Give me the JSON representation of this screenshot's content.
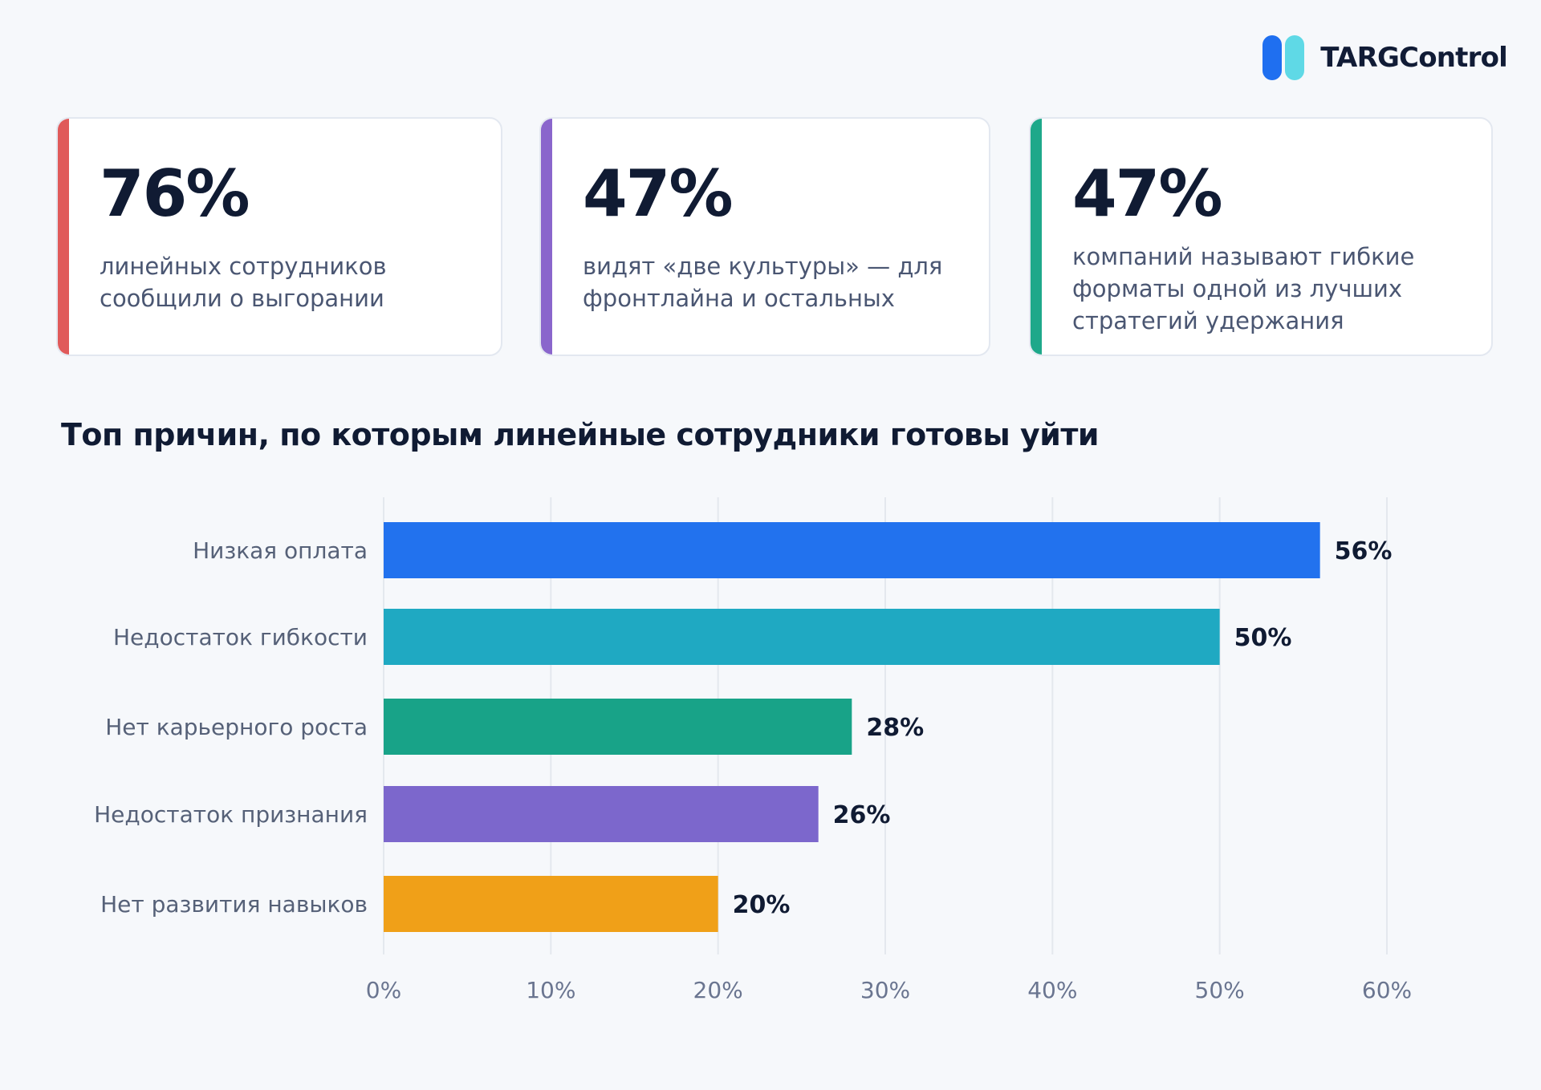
{
  "logo": {
    "name": "TARGControl",
    "colors": [
      "#1f6ff0",
      "#5fd9e6"
    ]
  },
  "cards": [
    {
      "value": "76%",
      "text_lines": [
        "линейных сотрудников",
        "сообщили о выгорании"
      ],
      "accent": "#e05a5a"
    },
    {
      "value": "47%",
      "text_lines": [
        "видят «две культуры» — для",
        "фронтлайна и остальных"
      ],
      "accent": "#8a66cc"
    },
    {
      "value": "47%",
      "text_lines": [
        "компаний называют гибкие",
        "форматы одной из лучших",
        "стратегий удержания"
      ],
      "accent": "#1ea88a"
    }
  ],
  "chart_data": {
    "type": "bar",
    "orientation": "horizontal",
    "title": "Топ причин, по которым линейные сотрудники готовы уйти",
    "categories": [
      "Низкая оплата",
      "Недостаток гибкости",
      "Нет карьерного роста",
      "Недостаток признания",
      "Нет развития навыков"
    ],
    "values": [
      56,
      50,
      28,
      26,
      20
    ],
    "value_labels": [
      "56%",
      "50%",
      "28%",
      "26%",
      "20%"
    ],
    "colors": [
      "#2272ee",
      "#1fa9c2",
      "#18a388",
      "#7c67cc",
      "#f0a018"
    ],
    "xlim": [
      0,
      60
    ],
    "xticks": [
      0,
      10,
      20,
      30,
      40,
      50,
      60
    ],
    "xtick_labels": [
      "0%",
      "10%",
      "20%",
      "30%",
      "40%",
      "50%",
      "60%"
    ],
    "grid": true,
    "legend": "none"
  }
}
